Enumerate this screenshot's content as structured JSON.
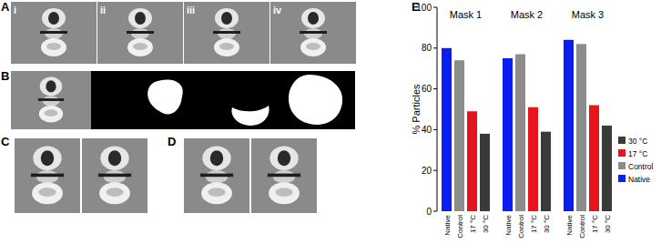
{
  "panel_labels": [
    "A",
    "B",
    "C",
    "D",
    "E"
  ],
  "subpanel_labels": [
    "i",
    "ii",
    "iii",
    "iv"
  ],
  "chart_data": {
    "type": "bar",
    "categories": [
      "Mask 1",
      "Mask 2",
      "Mask 3"
    ],
    "series": [
      {
        "name": "Native",
        "color": "#0b1ef2",
        "values": [
          80,
          75,
          84
        ]
      },
      {
        "name": "Control",
        "color": "#8c8c8c",
        "values": [
          74,
          77,
          82
        ]
      },
      {
        "name": "17 °C",
        "color": "#e8141c",
        "values": [
          49,
          51,
          52
        ]
      },
      {
        "name": "30 °C",
        "color": "#3a3a3a",
        "values": [
          38,
          39,
          42
        ]
      }
    ],
    "y_label": "% Particles",
    "ylim": [
      0,
      100
    ],
    "yticks": [
      0,
      20,
      40,
      60,
      80,
      100
    ],
    "grid": false,
    "legend": "right"
  }
}
